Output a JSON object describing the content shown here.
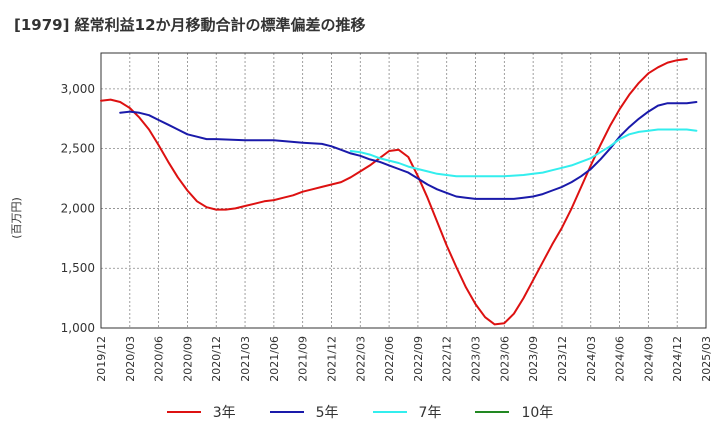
{
  "title": "[1979]  経常利益12か月移動合計の標準偏差の推移",
  "chart_data": {
    "type": "line",
    "title": "[1979]  経常利益12か月移動合計の標準偏差の推移",
    "ylabel": "(百万円)",
    "xlabel": "",
    "ylim": [
      1000,
      3300
    ],
    "yticks": [
      1000,
      1500,
      2000,
      2500,
      3000
    ],
    "ytick_labels": [
      "1,000",
      "1,500",
      "2,000",
      "2,500",
      "3,000"
    ],
    "x_categories": [
      "2019/12",
      "2020/03",
      "2020/06",
      "2020/09",
      "2020/12",
      "2021/03",
      "2021/06",
      "2021/09",
      "2021/12",
      "2022/03",
      "2022/06",
      "2022/09",
      "2022/12",
      "2023/03",
      "2023/06",
      "2023/09",
      "2023/12",
      "2024/03",
      "2024/06",
      "2024/09",
      "2024/12",
      "2025/03"
    ],
    "grid": true,
    "legend_position": "bottom",
    "series": [
      {
        "name": "3年",
        "color": "#dd1111",
        "points": [
          [
            "2019/12",
            2900
          ],
          [
            "2020/01",
            2910
          ],
          [
            "2020/02",
            2890
          ],
          [
            "2020/03",
            2840
          ],
          [
            "2020/04",
            2760
          ],
          [
            "2020/05",
            2660
          ],
          [
            "2020/06",
            2530
          ],
          [
            "2020/07",
            2390
          ],
          [
            "2020/08",
            2260
          ],
          [
            "2020/09",
            2150
          ],
          [
            "2020/10",
            2060
          ],
          [
            "2020/11",
            2010
          ],
          [
            "2020/12",
            1990
          ],
          [
            "2021/01",
            1990
          ],
          [
            "2021/02",
            2000
          ],
          [
            "2021/03",
            2020
          ],
          [
            "2021/04",
            2040
          ],
          [
            "2021/05",
            2060
          ],
          [
            "2021/06",
            2070
          ],
          [
            "2021/07",
            2090
          ],
          [
            "2021/08",
            2110
          ],
          [
            "2021/09",
            2140
          ],
          [
            "2021/10",
            2160
          ],
          [
            "2021/11",
            2180
          ],
          [
            "2021/12",
            2200
          ],
          [
            "2022/01",
            2220
          ],
          [
            "2022/02",
            2260
          ],
          [
            "2022/03",
            2310
          ],
          [
            "2022/04",
            2360
          ],
          [
            "2022/05",
            2420
          ],
          [
            "2022/06",
            2480
          ],
          [
            "2022/07",
            2490
          ],
          [
            "2022/08",
            2430
          ],
          [
            "2022/09",
            2270
          ],
          [
            "2022/10",
            2090
          ],
          [
            "2022/11",
            1890
          ],
          [
            "2022/12",
            1690
          ],
          [
            "2023/01",
            1510
          ],
          [
            "2023/02",
            1340
          ],
          [
            "2023/03",
            1200
          ],
          [
            "2023/04",
            1090
          ],
          [
            "2023/05",
            1030
          ],
          [
            "2023/06",
            1040
          ],
          [
            "2023/07",
            1120
          ],
          [
            "2023/08",
            1250
          ],
          [
            "2023/09",
            1400
          ],
          [
            "2023/10",
            1550
          ],
          [
            "2023/11",
            1700
          ],
          [
            "2023/12",
            1840
          ],
          [
            "2024/01",
            2000
          ],
          [
            "2024/02",
            2180
          ],
          [
            "2024/03",
            2360
          ],
          [
            "2024/04",
            2530
          ],
          [
            "2024/05",
            2690
          ],
          [
            "2024/06",
            2830
          ],
          [
            "2024/07",
            2950
          ],
          [
            "2024/08",
            3050
          ],
          [
            "2024/09",
            3130
          ],
          [
            "2024/10",
            3180
          ],
          [
            "2024/11",
            3220
          ],
          [
            "2024/12",
            3240
          ],
          [
            "2025/01",
            3250
          ]
        ]
      },
      {
        "name": "5年",
        "color": "#1a1aaa",
        "points": [
          [
            "2020/02",
            2800
          ],
          [
            "2020/03",
            2810
          ],
          [
            "2020/04",
            2800
          ],
          [
            "2020/05",
            2780
          ],
          [
            "2020/06",
            2740
          ],
          [
            "2020/07",
            2700
          ],
          [
            "2020/08",
            2660
          ],
          [
            "2020/09",
            2620
          ],
          [
            "2020/10",
            2600
          ],
          [
            "2020/11",
            2580
          ],
          [
            "2020/12",
            2580
          ],
          [
            "2021/03",
            2570
          ],
          [
            "2021/06",
            2570
          ],
          [
            "2021/09",
            2550
          ],
          [
            "2021/11",
            2540
          ],
          [
            "2021/12",
            2520
          ],
          [
            "2022/01",
            2490
          ],
          [
            "2022/02",
            2460
          ],
          [
            "2022/03",
            2440
          ],
          [
            "2022/04",
            2410
          ],
          [
            "2022/05",
            2390
          ],
          [
            "2022/06",
            2360
          ],
          [
            "2022/07",
            2330
          ],
          [
            "2022/08",
            2300
          ],
          [
            "2022/09",
            2250
          ],
          [
            "2022/10",
            2200
          ],
          [
            "2022/11",
            2160
          ],
          [
            "2022/12",
            2130
          ],
          [
            "2023/01",
            2100
          ],
          [
            "2023/02",
            2090
          ],
          [
            "2023/03",
            2080
          ],
          [
            "2023/04",
            2080
          ],
          [
            "2023/05",
            2080
          ],
          [
            "2023/06",
            2080
          ],
          [
            "2023/07",
            2080
          ],
          [
            "2023/08",
            2090
          ],
          [
            "2023/09",
            2100
          ],
          [
            "2023/10",
            2120
          ],
          [
            "2023/11",
            2150
          ],
          [
            "2023/12",
            2180
          ],
          [
            "2024/01",
            2220
          ],
          [
            "2024/02",
            2270
          ],
          [
            "2024/03",
            2330
          ],
          [
            "2024/04",
            2410
          ],
          [
            "2024/05",
            2500
          ],
          [
            "2024/06",
            2600
          ],
          [
            "2024/07",
            2680
          ],
          [
            "2024/08",
            2750
          ],
          [
            "2024/09",
            2810
          ],
          [
            "2024/10",
            2860
          ],
          [
            "2024/11",
            2880
          ],
          [
            "2024/12",
            2880
          ],
          [
            "2025/01",
            2880
          ],
          [
            "2025/02",
            2890
          ]
        ]
      },
      {
        "name": "7年",
        "color": "#33eeee",
        "points": [
          [
            "2022/02",
            2480
          ],
          [
            "2022/03",
            2470
          ],
          [
            "2022/04",
            2450
          ],
          [
            "2022/05",
            2420
          ],
          [
            "2022/06",
            2400
          ],
          [
            "2022/07",
            2380
          ],
          [
            "2022/08",
            2350
          ],
          [
            "2022/09",
            2330
          ],
          [
            "2022/10",
            2310
          ],
          [
            "2022/11",
            2290
          ],
          [
            "2022/12",
            2280
          ],
          [
            "2023/01",
            2270
          ],
          [
            "2023/03",
            2270
          ],
          [
            "2023/06",
            2270
          ],
          [
            "2023/08",
            2280
          ],
          [
            "2023/09",
            2290
          ],
          [
            "2023/10",
            2300
          ],
          [
            "2023/11",
            2320
          ],
          [
            "2023/12",
            2340
          ],
          [
            "2024/01",
            2360
          ],
          [
            "2024/02",
            2390
          ],
          [
            "2024/03",
            2420
          ],
          [
            "2024/04",
            2470
          ],
          [
            "2024/05",
            2520
          ],
          [
            "2024/06",
            2580
          ],
          [
            "2024/07",
            2620
          ],
          [
            "2024/08",
            2640
          ],
          [
            "2024/09",
            2650
          ],
          [
            "2024/10",
            2660
          ],
          [
            "2024/11",
            2660
          ],
          [
            "2024/12",
            2660
          ],
          [
            "2025/01",
            2660
          ],
          [
            "2025/02",
            2650
          ]
        ]
      },
      {
        "name": "10年",
        "color": "#228822",
        "points": []
      }
    ]
  },
  "legend": [
    {
      "label": "3年",
      "color": "#dd1111"
    },
    {
      "label": "5年",
      "color": "#1a1aaa"
    },
    {
      "label": "7年",
      "color": "#33eeee"
    },
    {
      "label": "10年",
      "color": "#228822"
    }
  ]
}
